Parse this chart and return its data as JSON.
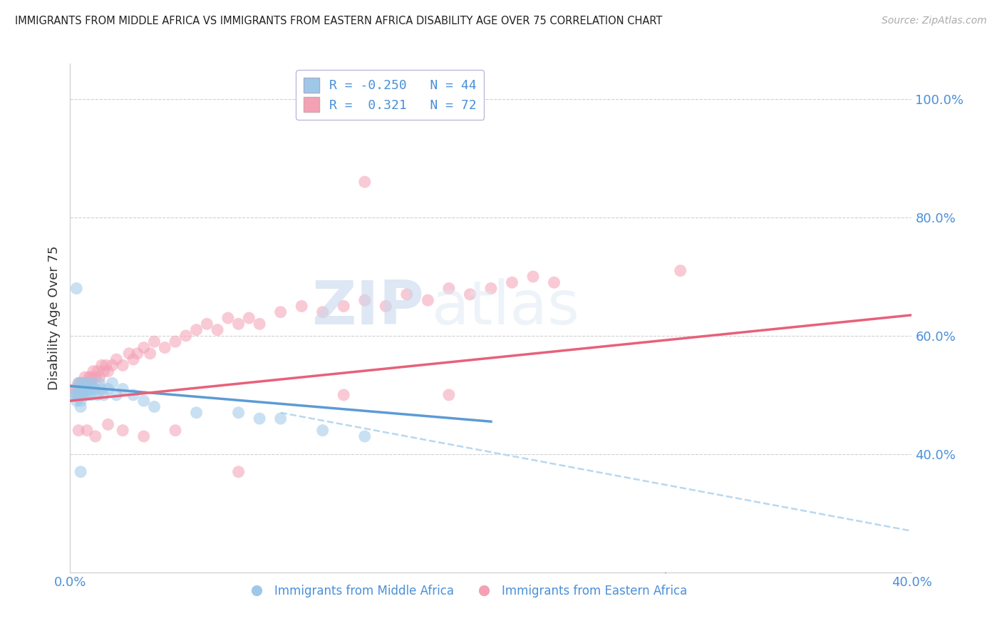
{
  "title": "IMMIGRANTS FROM MIDDLE AFRICA VS IMMIGRANTS FROM EASTERN AFRICA DISABILITY AGE OVER 75 CORRELATION CHART",
  "source": "Source: ZipAtlas.com",
  "ylabel": "Disability Age Over 75",
  "xlim": [
    0.0,
    0.4
  ],
  "ylim": [
    0.2,
    1.06
  ],
  "yticks": [
    0.4,
    0.6,
    0.8,
    1.0
  ],
  "ytick_labels": [
    "40.0%",
    "60.0%",
    "80.0%",
    "100.0%"
  ],
  "xtick_labels": [
    "0.0%",
    "40.0%"
  ],
  "xtick_vals": [
    0.0,
    0.4
  ],
  "color_blue": "#9ec8e8",
  "color_pink": "#f4a0b5",
  "color_blue_line": "#5b9bd5",
  "color_pink_line": "#e8607a",
  "color_blue_dash": "#b8d8f0",
  "watermark_text": "ZIPatlas",
  "background_color": "#ffffff",
  "grid_color": "#d0d0d0",
  "legend_entries": [
    {
      "r": "-0.250",
      "n": "44",
      "color": "#9ec8e8"
    },
    {
      "r": " 0.321",
      "n": "72",
      "color": "#f4a0b5"
    }
  ],
  "blue_x": [
    0.002,
    0.003,
    0.003,
    0.004,
    0.004,
    0.004,
    0.005,
    0.005,
    0.005,
    0.005,
    0.005,
    0.006,
    0.006,
    0.006,
    0.007,
    0.007,
    0.007,
    0.008,
    0.008,
    0.009,
    0.009,
    0.01,
    0.01,
    0.011,
    0.012,
    0.013,
    0.014,
    0.015,
    0.016,
    0.018,
    0.02,
    0.022,
    0.025,
    0.03,
    0.035,
    0.04,
    0.06,
    0.08,
    0.09,
    0.1,
    0.12,
    0.14,
    0.003,
    0.005
  ],
  "blue_y": [
    0.5,
    0.5,
    0.49,
    0.51,
    0.5,
    0.52,
    0.5,
    0.51,
    0.49,
    0.52,
    0.48,
    0.5,
    0.51,
    0.5,
    0.52,
    0.51,
    0.5,
    0.51,
    0.5,
    0.52,
    0.51,
    0.52,
    0.5,
    0.51,
    0.51,
    0.5,
    0.52,
    0.51,
    0.5,
    0.51,
    0.52,
    0.5,
    0.51,
    0.5,
    0.49,
    0.48,
    0.47,
    0.47,
    0.46,
    0.46,
    0.44,
    0.43,
    0.68,
    0.37
  ],
  "pink_x": [
    0.002,
    0.003,
    0.003,
    0.004,
    0.004,
    0.005,
    0.005,
    0.005,
    0.006,
    0.006,
    0.006,
    0.007,
    0.007,
    0.008,
    0.008,
    0.009,
    0.009,
    0.01,
    0.01,
    0.011,
    0.012,
    0.013,
    0.014,
    0.015,
    0.016,
    0.017,
    0.018,
    0.02,
    0.022,
    0.025,
    0.028,
    0.03,
    0.032,
    0.035,
    0.038,
    0.04,
    0.045,
    0.05,
    0.055,
    0.06,
    0.065,
    0.07,
    0.075,
    0.08,
    0.085,
    0.09,
    0.1,
    0.11,
    0.12,
    0.13,
    0.14,
    0.15,
    0.16,
    0.17,
    0.18,
    0.19,
    0.2,
    0.21,
    0.22,
    0.23,
    0.004,
    0.008,
    0.012,
    0.018,
    0.025,
    0.035,
    0.05,
    0.08,
    0.13,
    0.18,
    0.14,
    0.29
  ],
  "pink_y": [
    0.51,
    0.5,
    0.51,
    0.5,
    0.52,
    0.5,
    0.51,
    0.52,
    0.5,
    0.52,
    0.51,
    0.52,
    0.53,
    0.51,
    0.52,
    0.53,
    0.52,
    0.53,
    0.52,
    0.54,
    0.53,
    0.54,
    0.53,
    0.55,
    0.54,
    0.55,
    0.54,
    0.55,
    0.56,
    0.55,
    0.57,
    0.56,
    0.57,
    0.58,
    0.57,
    0.59,
    0.58,
    0.59,
    0.6,
    0.61,
    0.62,
    0.61,
    0.63,
    0.62,
    0.63,
    0.62,
    0.64,
    0.65,
    0.64,
    0.65,
    0.66,
    0.65,
    0.67,
    0.66,
    0.68,
    0.67,
    0.68,
    0.69,
    0.7,
    0.69,
    0.44,
    0.44,
    0.43,
    0.45,
    0.44,
    0.43,
    0.44,
    0.37,
    0.5,
    0.5,
    0.86,
    0.71
  ],
  "blue_line_x0": 0.0,
  "blue_line_x1": 0.2,
  "blue_line_y0": 0.515,
  "blue_line_y1": 0.455,
  "pink_line_x0": 0.0,
  "pink_line_x1": 0.4,
  "pink_line_y0": 0.49,
  "pink_line_y1": 0.635,
  "dash_line_x0": 0.1,
  "dash_line_x1": 0.4,
  "dash_line_y0": 0.47,
  "dash_line_y1": 0.27
}
